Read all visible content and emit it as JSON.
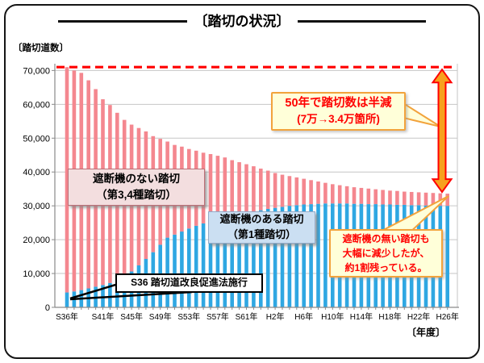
{
  "header": {
    "title": "〔踏切の状況〕"
  },
  "chart": {
    "y_axis_title": "〔踏切道数〕",
    "x_axis_title": "〔年度〕"
  },
  "annotations": {
    "halved": {
      "line1": "50年で踏切数は半減",
      "line2": "(7万→3.4万箇所)"
    },
    "no_barrier_label": {
      "line1": "遮断機のない踏切",
      "line2": "（第3,4種踏切）"
    },
    "barrier_label": {
      "line1": "遮断機のある踏切",
      "line2": "（第1種踏切）"
    },
    "s36_law": {
      "text": "S36 踏切道改良促進法施行"
    },
    "remaining": {
      "line1": "遮断機の無い踏切も",
      "line2": "大幅に減少したが、",
      "line3": "約1割残っている。"
    }
  },
  "chart_data": {
    "type": "bar",
    "stacked": true,
    "grid": true,
    "x_start_year": 1961,
    "x_end_year": 2014,
    "x_interval_years": 1,
    "xlabel": "〔年度〕",
    "ylabel": "〔踏切道数〕",
    "ylim": [
      0,
      72000
    ],
    "x_tick_labels": [
      {
        "label": "S36年",
        "index": 0
      },
      {
        "label": "S41年",
        "index": 5
      },
      {
        "label": "S45年",
        "index": 9
      },
      {
        "label": "S49年",
        "index": 13
      },
      {
        "label": "S53年",
        "index": 17
      },
      {
        "label": "S57年",
        "index": 21
      },
      {
        "label": "S61年",
        "index": 25
      },
      {
        "label": "H2年",
        "index": 29
      },
      {
        "label": "H6年",
        "index": 33
      },
      {
        "label": "H10年",
        "index": 37
      },
      {
        "label": "H14年",
        "index": 41
      },
      {
        "label": "H18年",
        "index": 45
      },
      {
        "label": "H22年",
        "index": 49
      },
      {
        "label": "H26年",
        "index": 53
      }
    ],
    "y_ticks": [
      {
        "label": "0",
        "value": 0
      },
      {
        "label": "10,000",
        "value": 10000
      },
      {
        "label": "20,000",
        "value": 20000
      },
      {
        "label": "30,000",
        "value": 30000
      },
      {
        "label": "40,000",
        "value": 40000
      },
      {
        "label": "50,000",
        "value": 50000
      },
      {
        "label": "60,000",
        "value": 60000
      },
      {
        "label": "70,000",
        "value": 70000
      }
    ],
    "series": [
      {
        "name": "遮断機のある踏切（第1種踏切）",
        "color": "#2FA7E2",
        "values": [
          4400,
          4700,
          5100,
          5600,
          6100,
          6600,
          7200,
          8000,
          9200,
          10600,
          12400,
          14300,
          16300,
          18500,
          20600,
          21500,
          22400,
          23300,
          24100,
          24800,
          25500,
          26100,
          26600,
          27100,
          27500,
          27900,
          28300,
          28700,
          29100,
          29400,
          29700,
          30000,
          30200,
          30400,
          30500,
          30600,
          30700,
          30700,
          30700,
          30700,
          30600,
          30600,
          30500,
          30500,
          30400,
          30400,
          30300,
          30300,
          30200,
          30200,
          30100,
          30100,
          30000,
          30000
        ]
      },
      {
        "name": "遮断機のない踏切（第3,4種踏切）",
        "color": "#F4878F",
        "values": [
          66600,
          65300,
          64200,
          61500,
          58400,
          54900,
          52600,
          49500,
          46200,
          43400,
          40600,
          37700,
          34300,
          31300,
          28400,
          26500,
          25100,
          23500,
          22200,
          20900,
          19800,
          18700,
          17700,
          16400,
          15400,
          14400,
          13400,
          12300,
          11300,
          10300,
          9500,
          8800,
          8200,
          7600,
          7100,
          6600,
          6100,
          5700,
          5400,
          5100,
          4900,
          4700,
          4600,
          4400,
          4300,
          4100,
          4100,
          3900,
          3900,
          3800,
          3800,
          3700,
          3700,
          3600
        ]
      }
    ],
    "reference_line": {
      "value": 71000,
      "color": "#FF0000",
      "style": "dashed"
    },
    "arrow": {
      "from": 71000,
      "to": 33600,
      "color_fill": "#F7A11E",
      "color_stroke": "#FF0000"
    }
  }
}
